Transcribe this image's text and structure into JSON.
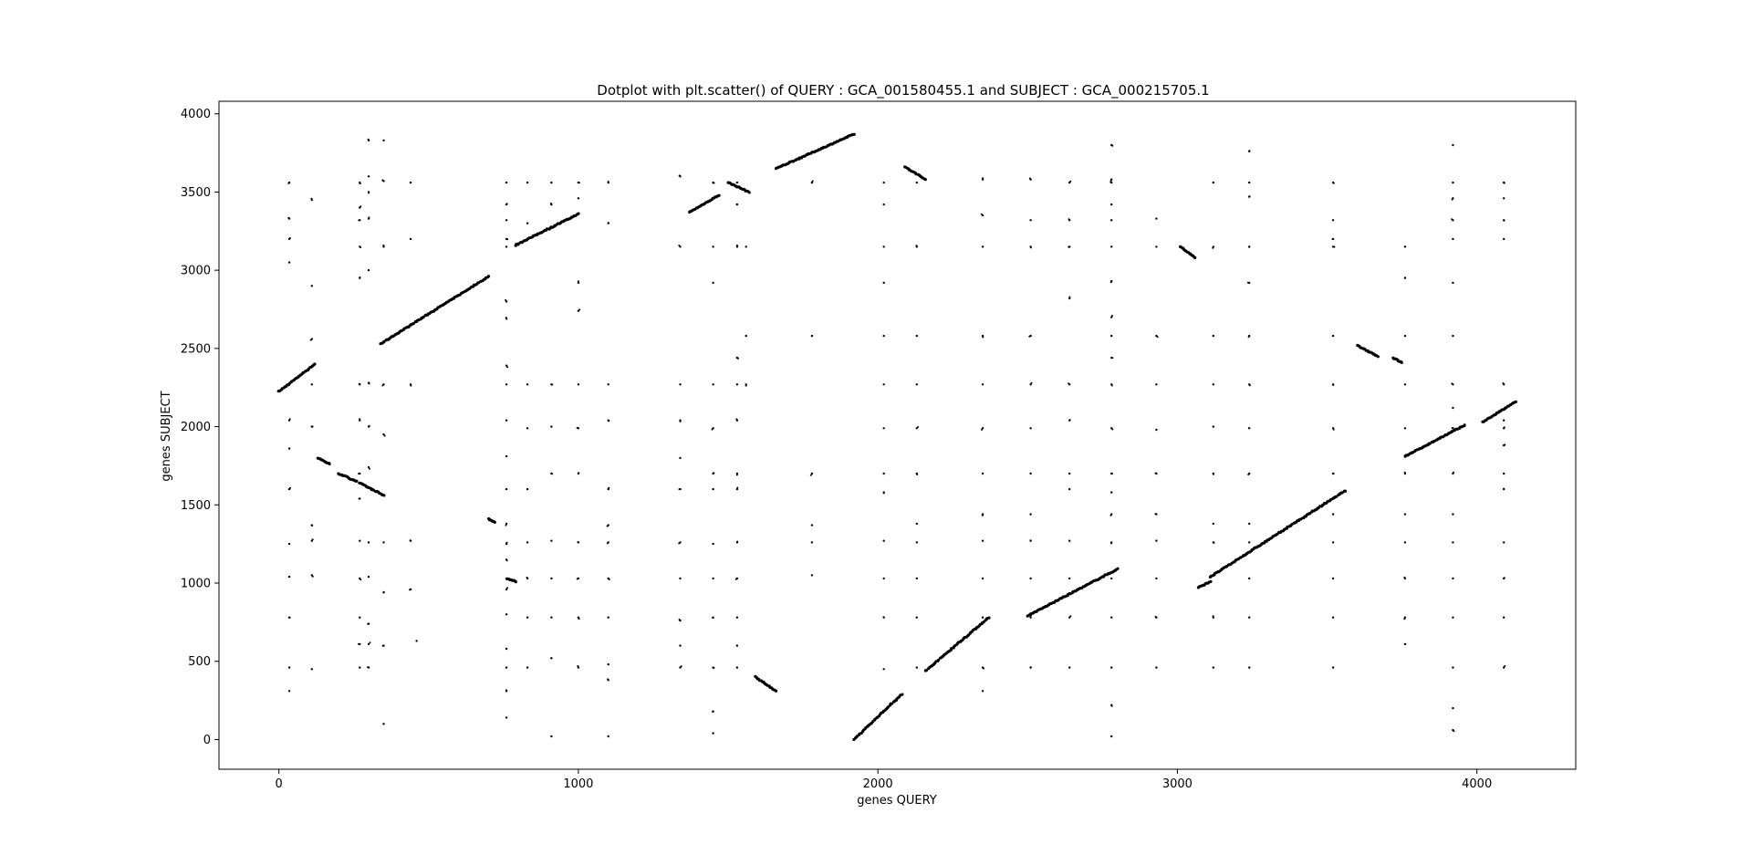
{
  "chart_data": {
    "type": "scatter",
    "title": "Dotplot with plt.scatter() of QUERY : GCA_001580455.1 and SUBJECT : GCA_000215705.1",
    "xlabel": "genes QUERY",
    "ylabel": "genes SUBJECT",
    "xlim": [
      -200,
      4330
    ],
    "ylim": [
      -190,
      4080
    ],
    "xticks": [
      0,
      1000,
      2000,
      3000,
      4000
    ],
    "yticks": [
      0,
      500,
      1000,
      1500,
      2000,
      2500,
      3000,
      3500,
      4000
    ],
    "xtick_labels": [
      "0",
      "1000",
      "2000",
      "3000",
      "4000"
    ],
    "ytick_labels": [
      "0",
      "500",
      "1000",
      "1500",
      "2000",
      "2500",
      "3000",
      "3500",
      "4000"
    ],
    "grid": false,
    "marker_color": "#000000",
    "diagonal_segments": [
      {
        "x": [
          0,
          120
        ],
        "y": [
          2225,
          2400
        ]
      },
      {
        "x": [
          130,
          170
        ],
        "y": [
          1800,
          1760
        ]
      },
      {
        "x": [
          200,
          260
        ],
        "y": [
          1700,
          1650
        ]
      },
      {
        "x": [
          270,
          350
        ],
        "y": [
          1640,
          1560
        ]
      },
      {
        "x": [
          340,
          700
        ],
        "y": [
          2530,
          2960
        ]
      },
      {
        "x": [
          700,
          720
        ],
        "y": [
          1410,
          1390
        ]
      },
      {
        "x": [
          760,
          790
        ],
        "y": [
          1030,
          1010
        ]
      },
      {
        "x": [
          790,
          1000
        ],
        "y": [
          3160,
          3360
        ]
      },
      {
        "x": [
          1370,
          1470
        ],
        "y": [
          3370,
          3480
        ]
      },
      {
        "x": [
          1500,
          1570
        ],
        "y": [
          3560,
          3500
        ]
      },
      {
        "x": [
          1590,
          1660
        ],
        "y": [
          400,
          310
        ]
      },
      {
        "x": [
          1660,
          1920
        ],
        "y": [
          3650,
          3870
        ]
      },
      {
        "x": [
          1920,
          2080
        ],
        "y": [
          0,
          290
        ]
      },
      {
        "x": [
          2090,
          2160
        ],
        "y": [
          3660,
          3580
        ]
      },
      {
        "x": [
          2160,
          2370
        ],
        "y": [
          440,
          780
        ]
      },
      {
        "x": [
          2500,
          2800
        ],
        "y": [
          790,
          1090
        ]
      },
      {
        "x": [
          3010,
          3060
        ],
        "y": [
          3150,
          3080
        ]
      },
      {
        "x": [
          3070,
          3110
        ],
        "y": [
          970,
          1010
        ]
      },
      {
        "x": [
          3110,
          3560
        ],
        "y": [
          1040,
          1590
        ]
      },
      {
        "x": [
          3600,
          3670
        ],
        "y": [
          2520,
          2450
        ]
      },
      {
        "x": [
          3720,
          3750
        ],
        "y": [
          2440,
          2410
        ]
      },
      {
        "x": [
          3760,
          3960
        ],
        "y": [
          1810,
          2010
        ]
      },
      {
        "x": [
          4020,
          4130
        ],
        "y": [
          2030,
          2160
        ]
      }
    ],
    "scattered_points": [
      [
        35,
        3560
      ],
      [
        35,
        3330
      ],
      [
        35,
        3200
      ],
      [
        35,
        3050
      ],
      [
        35,
        2270
      ],
      [
        35,
        2040
      ],
      [
        35,
        1860
      ],
      [
        35,
        1600
      ],
      [
        35,
        1250
      ],
      [
        35,
        1040
      ],
      [
        35,
        780
      ],
      [
        35,
        460
      ],
      [
        35,
        310
      ],
      [
        110,
        3450
      ],
      [
        110,
        2900
      ],
      [
        110,
        2560
      ],
      [
        110,
        2270
      ],
      [
        110,
        2000
      ],
      [
        110,
        1370
      ],
      [
        110,
        1270
      ],
      [
        110,
        1050
      ],
      [
        110,
        450
      ],
      [
        270,
        3560
      ],
      [
        270,
        3400
      ],
      [
        270,
        3320
      ],
      [
        270,
        3150
      ],
      [
        270,
        2950
      ],
      [
        270,
        2270
      ],
      [
        270,
        2040
      ],
      [
        270,
        1700
      ],
      [
        270,
        1540
      ],
      [
        270,
        1270
      ],
      [
        270,
        1030
      ],
      [
        270,
        780
      ],
      [
        270,
        610
      ],
      [
        270,
        460
      ],
      [
        300,
        3600
      ],
      [
        300,
        3500
      ],
      [
        300,
        3330
      ],
      [
        300,
        3000
      ],
      [
        300,
        2280
      ],
      [
        300,
        2000
      ],
      [
        300,
        1740
      ],
      [
        300,
        1260
      ],
      [
        300,
        1040
      ],
      [
        300,
        740
      ],
      [
        300,
        610
      ],
      [
        300,
        460
      ],
      [
        300,
        3830
      ],
      [
        350,
        3570
      ],
      [
        350,
        3150
      ],
      [
        350,
        2270
      ],
      [
        350,
        1950
      ],
      [
        350,
        1260
      ],
      [
        350,
        940
      ],
      [
        350,
        600
      ],
      [
        350,
        100
      ],
      [
        350,
        3830
      ],
      [
        440,
        3560
      ],
      [
        440,
        3200
      ],
      [
        440,
        2270
      ],
      [
        440,
        1270
      ],
      [
        440,
        960
      ],
      [
        460,
        630
      ],
      [
        760,
        3560
      ],
      [
        760,
        3420
      ],
      [
        760,
        3320
      ],
      [
        760,
        3200
      ],
      [
        760,
        3150
      ],
      [
        760,
        2800
      ],
      [
        760,
        2690
      ],
      [
        760,
        2390
      ],
      [
        760,
        2270
      ],
      [
        760,
        2040
      ],
      [
        760,
        1810
      ],
      [
        760,
        1600
      ],
      [
        760,
        1380
      ],
      [
        760,
        1250
      ],
      [
        760,
        1150
      ],
      [
        760,
        960
      ],
      [
        760,
        800
      ],
      [
        760,
        580
      ],
      [
        760,
        460
      ],
      [
        760,
        310
      ],
      [
        760,
        140
      ],
      [
        830,
        3560
      ],
      [
        830,
        3300
      ],
      [
        830,
        2270
      ],
      [
        830,
        1990
      ],
      [
        830,
        1600
      ],
      [
        830,
        1260
      ],
      [
        830,
        1030
      ],
      [
        830,
        780
      ],
      [
        830,
        460
      ],
      [
        910,
        3560
      ],
      [
        910,
        3420
      ],
      [
        910,
        2270
      ],
      [
        910,
        2000
      ],
      [
        910,
        1700
      ],
      [
        910,
        1270
      ],
      [
        910,
        1030
      ],
      [
        910,
        780
      ],
      [
        910,
        520
      ],
      [
        910,
        20
      ],
      [
        1000,
        3560
      ],
      [
        1000,
        3460
      ],
      [
        1000,
        2920
      ],
      [
        1000,
        2740
      ],
      [
        1000,
        2270
      ],
      [
        1000,
        1990
      ],
      [
        1000,
        1700
      ],
      [
        1000,
        1260
      ],
      [
        1000,
        1030
      ],
      [
        1000,
        780
      ],
      [
        1000,
        460
      ],
      [
        1100,
        3560
      ],
      [
        1100,
        3300
      ],
      [
        1100,
        2270
      ],
      [
        1100,
        2040
      ],
      [
        1100,
        1600
      ],
      [
        1100,
        1370
      ],
      [
        1100,
        1260
      ],
      [
        1100,
        1030
      ],
      [
        1100,
        780
      ],
      [
        1100,
        480
      ],
      [
        1100,
        380
      ],
      [
        1100,
        20
      ],
      [
        1340,
        3600
      ],
      [
        1340,
        3150
      ],
      [
        1340,
        2270
      ],
      [
        1340,
        2040
      ],
      [
        1340,
        1800
      ],
      [
        1340,
        1600
      ],
      [
        1340,
        1260
      ],
      [
        1340,
        1030
      ],
      [
        1340,
        760
      ],
      [
        1340,
        600
      ],
      [
        1340,
        460
      ],
      [
        1450,
        3560
      ],
      [
        1450,
        3150
      ],
      [
        1450,
        2920
      ],
      [
        1450,
        2270
      ],
      [
        1450,
        1990
      ],
      [
        1450,
        1700
      ],
      [
        1450,
        1600
      ],
      [
        1450,
        1250
      ],
      [
        1450,
        1030
      ],
      [
        1450,
        780
      ],
      [
        1450,
        460
      ],
      [
        1450,
        180
      ],
      [
        1450,
        40
      ],
      [
        1530,
        3560
      ],
      [
        1530,
        3420
      ],
      [
        1530,
        3150
      ],
      [
        1530,
        2440
      ],
      [
        1530,
        2270
      ],
      [
        1530,
        2040
      ],
      [
        1530,
        1700
      ],
      [
        1530,
        1600
      ],
      [
        1530,
        1260
      ],
      [
        1530,
        1030
      ],
      [
        1530,
        780
      ],
      [
        1530,
        600
      ],
      [
        1530,
        460
      ],
      [
        1560,
        2270
      ],
      [
        1560,
        2580
      ],
      [
        1560,
        3150
      ],
      [
        1780,
        2580
      ],
      [
        1780,
        1700
      ],
      [
        1780,
        1370
      ],
      [
        1780,
        1260
      ],
      [
        1780,
        1050
      ],
      [
        1780,
        3560
      ],
      [
        2020,
        3560
      ],
      [
        2020,
        3420
      ],
      [
        2020,
        3150
      ],
      [
        2020,
        2920
      ],
      [
        2020,
        2580
      ],
      [
        2020,
        2270
      ],
      [
        2020,
        1990
      ],
      [
        2020,
        1700
      ],
      [
        2020,
        1580
      ],
      [
        2020,
        1270
      ],
      [
        2020,
        1030
      ],
      [
        2020,
        780
      ],
      [
        2020,
        450
      ],
      [
        2130,
        3560
      ],
      [
        2130,
        3150
      ],
      [
        2130,
        2580
      ],
      [
        2130,
        2270
      ],
      [
        2130,
        1990
      ],
      [
        2130,
        1700
      ],
      [
        2130,
        1380
      ],
      [
        2130,
        1260
      ],
      [
        2130,
        1030
      ],
      [
        2130,
        780
      ],
      [
        2130,
        460
      ],
      [
        2350,
        3580
      ],
      [
        2350,
        3350
      ],
      [
        2350,
        3150
      ],
      [
        2350,
        2580
      ],
      [
        2350,
        2270
      ],
      [
        2350,
        1990
      ],
      [
        2350,
        1700
      ],
      [
        2350,
        1440
      ],
      [
        2350,
        1270
      ],
      [
        2350,
        1030
      ],
      [
        2350,
        780
      ],
      [
        2350,
        460
      ],
      [
        2350,
        310
      ],
      [
        2510,
        3580
      ],
      [
        2510,
        3320
      ],
      [
        2510,
        3150
      ],
      [
        2510,
        2580
      ],
      [
        2510,
        2270
      ],
      [
        2510,
        1990
      ],
      [
        2510,
        1700
      ],
      [
        2510,
        1440
      ],
      [
        2510,
        1270
      ],
      [
        2510,
        1030
      ],
      [
        2510,
        780
      ],
      [
        2510,
        460
      ],
      [
        2640,
        3560
      ],
      [
        2640,
        3320
      ],
      [
        2640,
        3150
      ],
      [
        2640,
        2820
      ],
      [
        2640,
        2270
      ],
      [
        2640,
        2040
      ],
      [
        2640,
        1700
      ],
      [
        2640,
        1600
      ],
      [
        2640,
        1270
      ],
      [
        2640,
        1030
      ],
      [
        2640,
        780
      ],
      [
        2640,
        460
      ],
      [
        2780,
        3580
      ],
      [
        2780,
        3560
      ],
      [
        2780,
        3420
      ],
      [
        2780,
        3320
      ],
      [
        2780,
        3150
      ],
      [
        2780,
        2930
      ],
      [
        2780,
        2700
      ],
      [
        2780,
        2580
      ],
      [
        2780,
        2440
      ],
      [
        2780,
        2270
      ],
      [
        2780,
        1990
      ],
      [
        2780,
        1700
      ],
      [
        2780,
        1580
      ],
      [
        2780,
        1440
      ],
      [
        2780,
        1260
      ],
      [
        2780,
        1030
      ],
      [
        2780,
        780
      ],
      [
        2780,
        460
      ],
      [
        2780,
        220
      ],
      [
        2780,
        20
      ],
      [
        2780,
        3800
      ],
      [
        2930,
        3330
      ],
      [
        2930,
        3150
      ],
      [
        2930,
        2580
      ],
      [
        2930,
        2270
      ],
      [
        2930,
        1980
      ],
      [
        2930,
        1700
      ],
      [
        2930,
        1440
      ],
      [
        2930,
        1270
      ],
      [
        2930,
        1030
      ],
      [
        2930,
        780
      ],
      [
        2930,
        460
      ],
      [
        3120,
        3560
      ],
      [
        3120,
        3150
      ],
      [
        3120,
        2580
      ],
      [
        3120,
        2270
      ],
      [
        3120,
        2000
      ],
      [
        3120,
        1700
      ],
      [
        3120,
        1380
      ],
      [
        3120,
        1260
      ],
      [
        3120,
        780
      ],
      [
        3120,
        460
      ],
      [
        3240,
        3560
      ],
      [
        3240,
        3470
      ],
      [
        3240,
        3150
      ],
      [
        3240,
        2920
      ],
      [
        3240,
        2580
      ],
      [
        3240,
        2270
      ],
      [
        3240,
        1990
      ],
      [
        3240,
        1700
      ],
      [
        3240,
        1380
      ],
      [
        3240,
        1260
      ],
      [
        3240,
        1030
      ],
      [
        3240,
        780
      ],
      [
        3240,
        460
      ],
      [
        3240,
        3760
      ],
      [
        3520,
        3560
      ],
      [
        3520,
        3320
      ],
      [
        3520,
        3200
      ],
      [
        3520,
        3150
      ],
      [
        3520,
        2580
      ],
      [
        3520,
        2270
      ],
      [
        3520,
        1990
      ],
      [
        3520,
        1700
      ],
      [
        3520,
        1440
      ],
      [
        3520,
        1260
      ],
      [
        3520,
        1030
      ],
      [
        3520,
        780
      ],
      [
        3520,
        460
      ],
      [
        3760,
        3150
      ],
      [
        3760,
        2950
      ],
      [
        3760,
        2580
      ],
      [
        3760,
        2270
      ],
      [
        3760,
        1990
      ],
      [
        3760,
        1700
      ],
      [
        3760,
        1440
      ],
      [
        3760,
        1260
      ],
      [
        3760,
        1030
      ],
      [
        3760,
        780
      ],
      [
        3760,
        610
      ],
      [
        3920,
        3800
      ],
      [
        3920,
        3560
      ],
      [
        3920,
        3460
      ],
      [
        3920,
        3320
      ],
      [
        3920,
        3200
      ],
      [
        3920,
        2920
      ],
      [
        3920,
        2580
      ],
      [
        3920,
        2270
      ],
      [
        3920,
        2120
      ],
      [
        3920,
        1990
      ],
      [
        3920,
        1700
      ],
      [
        3920,
        1440
      ],
      [
        3920,
        1260
      ],
      [
        3920,
        1030
      ],
      [
        3920,
        780
      ],
      [
        3920,
        460
      ],
      [
        3920,
        200
      ],
      [
        3920,
        60
      ],
      [
        4090,
        3560
      ],
      [
        4090,
        3460
      ],
      [
        4090,
        3320
      ],
      [
        4090,
        3200
      ],
      [
        4090,
        2270
      ],
      [
        4090,
        2040
      ],
      [
        4090,
        1990
      ],
      [
        4090,
        1880
      ],
      [
        4090,
        1700
      ],
      [
        4090,
        1600
      ],
      [
        4090,
        1260
      ],
      [
        4090,
        1030
      ],
      [
        4090,
        780
      ],
      [
        4090,
        460
      ]
    ]
  }
}
